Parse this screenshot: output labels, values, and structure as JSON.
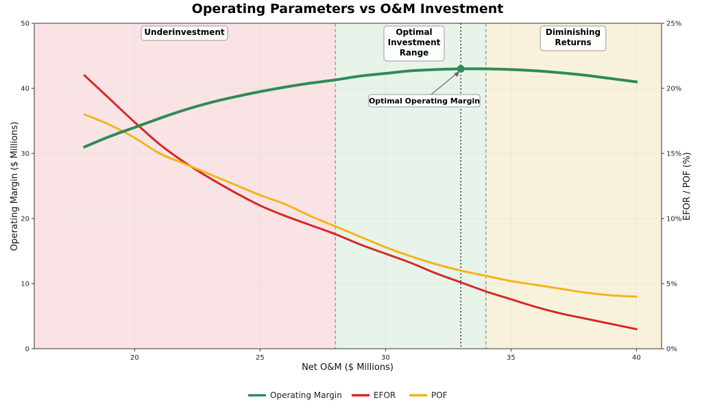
{
  "chart_data": {
    "type": "line",
    "title": "Operating Parameters vs O&M Investment",
    "xlabel": "Net O&M ($ Millions)",
    "ylabel": "Operating Margin ($ Millions)",
    "y2label": "EFOR / POF (%)",
    "xlim": [
      16,
      41
    ],
    "ylim": [
      0,
      50
    ],
    "y2lim": [
      0,
      25
    ],
    "x_ticks": [
      20,
      25,
      30,
      35,
      40
    ],
    "y_ticks": [
      0,
      10,
      20,
      30,
      40,
      50
    ],
    "y2_ticks": [
      "0%",
      "5%",
      "10%",
      "15%",
      "20%",
      "25%"
    ],
    "y2_tick_values": [
      0,
      5,
      10,
      15,
      20,
      25
    ],
    "grid": true,
    "legend_position": "bottom-center",
    "regions": [
      {
        "label_lines": [
          "Underinvestment"
        ],
        "x_start": 16,
        "x_end": 28,
        "color": "#f9e3e5"
      },
      {
        "label_lines": [
          "Optimal",
          "Investment",
          "Range"
        ],
        "x_start": 28,
        "x_end": 34,
        "color": "#e8f3e9"
      },
      {
        "label_lines": [
          "Diminishing",
          "Returns"
        ],
        "x_start": 34,
        "x_end": 41,
        "color": "#f8f2dc"
      }
    ],
    "vertical_lines": [
      {
        "x": 28,
        "style": "dashed"
      },
      {
        "x": 33,
        "style": "dotted"
      },
      {
        "x": 34,
        "style": "dashed"
      }
    ],
    "x": [
      18,
      19,
      20,
      21,
      22,
      23,
      24,
      25,
      26,
      27,
      28,
      29,
      30,
      31,
      32,
      33,
      34,
      35,
      36,
      37,
      38,
      39,
      40
    ],
    "series": [
      {
        "name": "Operating Margin",
        "axis": "left",
        "color": "#2e8b57",
        "values": [
          31.0,
          32.6,
          34.0,
          35.4,
          36.7,
          37.8,
          38.7,
          39.5,
          40.2,
          40.8,
          41.3,
          41.9,
          42.3,
          42.7,
          42.9,
          43.0,
          43.0,
          42.9,
          42.7,
          42.4,
          42.0,
          41.5,
          41.0
        ]
      },
      {
        "name": "EFOR",
        "axis": "right",
        "color": "#d62728",
        "values": [
          21.0,
          19.2,
          17.4,
          15.7,
          14.3,
          13.1,
          12.0,
          11.0,
          10.2,
          9.5,
          8.8,
          8.0,
          7.3,
          6.6,
          5.8,
          5.1,
          4.4,
          3.8,
          3.2,
          2.7,
          2.3,
          1.9,
          1.5
        ]
      },
      {
        "name": "POF",
        "axis": "right",
        "color": "#f2b518",
        "values": [
          18.0,
          17.2,
          16.2,
          15.0,
          14.2,
          13.4,
          12.6,
          11.8,
          11.1,
          10.2,
          9.4,
          8.6,
          7.8,
          7.1,
          6.5,
          6.0,
          5.6,
          5.2,
          4.9,
          4.6,
          4.3,
          4.1,
          4.0
        ]
      }
    ],
    "optimal_point": {
      "x": 33,
      "y": 43
    },
    "annotation": {
      "text": "Optimal Operating Margin"
    }
  }
}
